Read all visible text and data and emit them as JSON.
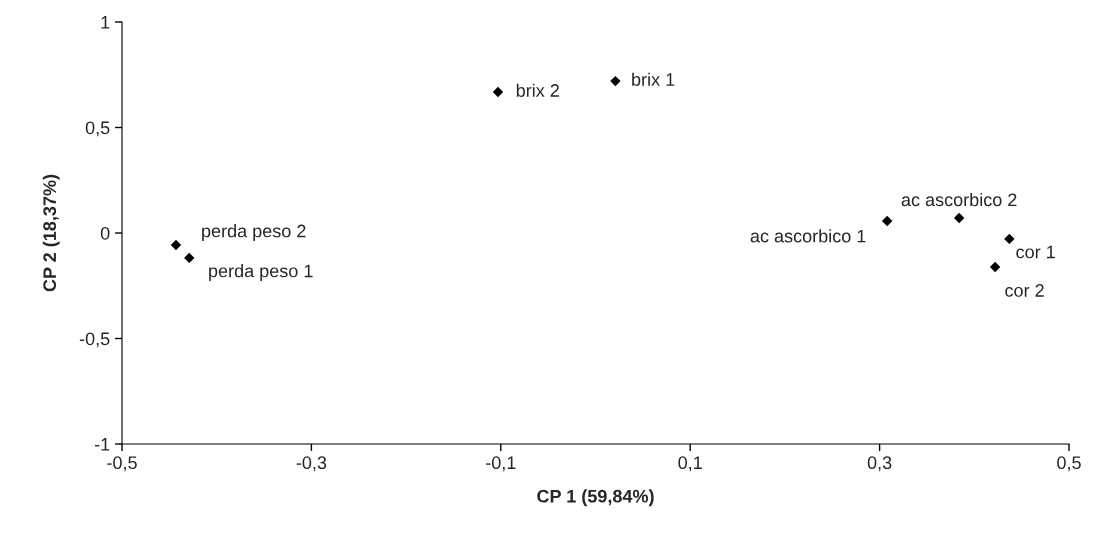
{
  "chart_data": {
    "type": "scatter",
    "xlabel": "CP 1 (59,84%)",
    "ylabel": "CP 2 (18,37%)",
    "x": [
      -0.443,
      -0.429,
      -0.103,
      0.021,
      0.308,
      0.384,
      0.437,
      0.422
    ],
    "series": [
      {
        "color": "#000000",
        "values": [
          -0.057,
          -0.118,
          0.668,
          0.72,
          0.057,
          0.071,
          -0.028,
          -0.161
        ]
      }
    ],
    "marker": "diamond",
    "grid": false,
    "legend": false,
    "xlim": [
      -0.5,
      0.5
    ],
    "xticks": [
      {
        "value": -0.5,
        "label": "-0,5"
      },
      {
        "value": -0.3,
        "label": "-0,3"
      },
      {
        "value": -0.1,
        "label": "-0,1"
      },
      {
        "value": 0.1,
        "label": "0,1"
      },
      {
        "value": 0.3,
        "label": "0,3"
      },
      {
        "value": 0.5,
        "label": "0,5"
      }
    ],
    "ylim": [
      -1,
      1
    ],
    "yticks": [
      {
        "value": -1,
        "label": "-1"
      },
      {
        "value": -0.5,
        "label": "-0,5"
      },
      {
        "value": 0,
        "label": "0"
      },
      {
        "value": 0.5,
        "label": "0,5"
      },
      {
        "value": 1,
        "label": "1"
      }
    ],
    "annotations": [
      {
        "text": "perda peso 2",
        "x": -0.443,
        "y": -0.057
      },
      {
        "text": "perda peso 1",
        "x": -0.429,
        "y": -0.118
      },
      {
        "text": "brix 2",
        "x": -0.103,
        "y": 0.668
      },
      {
        "text": "brix 1",
        "x": 0.021,
        "y": 0.72
      },
      {
        "text": "ac ascorbico 1",
        "x": 0.308,
        "y": 0.057
      },
      {
        "text": "ac ascorbico 2",
        "x": 0.384,
        "y": 0.071
      },
      {
        "text": "cor 1",
        "x": 0.437,
        "y": -0.028
      },
      {
        "text": "cor 2",
        "x": 0.422,
        "y": -0.161
      }
    ]
  }
}
